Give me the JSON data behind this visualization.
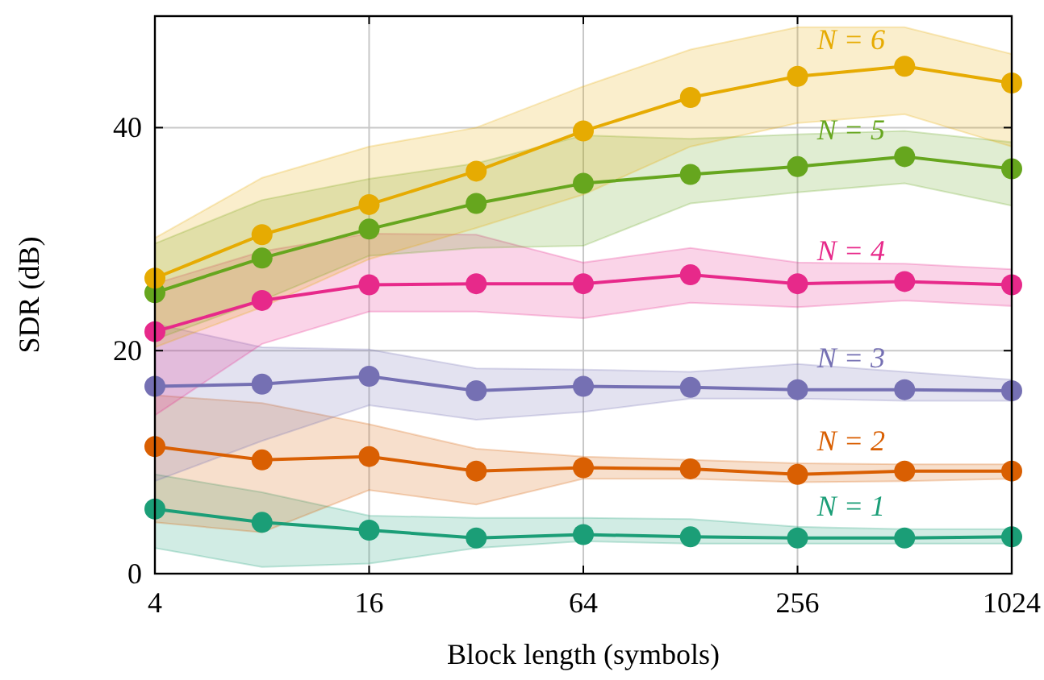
{
  "chart_data": {
    "type": "line",
    "xlabel": "Block length (symbols)",
    "ylabel": "SDR (dB)",
    "x": [
      4,
      8,
      16,
      32,
      64,
      128,
      256,
      512,
      1024
    ],
    "xlim": [
      4,
      1024
    ],
    "xticks": [
      4,
      16,
      64,
      256,
      1024
    ],
    "ylim": [
      0,
      50
    ],
    "yticks": [
      0,
      20,
      40
    ],
    "log": "x",
    "grid": true,
    "marker": "circle",
    "line_style": "solid",
    "series": [
      {
        "name": "N = 1",
        "color": "#1b9e77",
        "values": [
          5.8,
          4.6,
          3.9,
          3.2,
          3.5,
          3.3,
          3.2,
          3.2,
          3.3
        ],
        "upper": [
          8.9,
          7.3,
          5.2,
          5.0,
          5.0,
          4.9,
          4.2,
          4.0,
          4.0
        ],
        "lower": [
          2.3,
          0.6,
          0.9,
          2.3,
          2.9,
          2.7,
          2.7,
          2.7,
          2.7
        ]
      },
      {
        "name": "N = 2",
        "color": "#d95f02",
        "values": [
          11.4,
          10.2,
          10.5,
          9.2,
          9.5,
          9.4,
          8.9,
          9.2,
          9.2
        ],
        "upper": [
          16.0,
          15.3,
          13.4,
          11.2,
          10.5,
          10.2,
          9.9,
          9.8,
          9.8
        ],
        "lower": [
          4.6,
          3.7,
          7.5,
          6.2,
          8.5,
          8.5,
          8.2,
          8.3,
          8.5
        ]
      },
      {
        "name": "N = 3",
        "color": "#7570b3",
        "values": [
          16.8,
          17.0,
          17.7,
          16.4,
          16.8,
          16.7,
          16.5,
          16.5,
          16.4
        ],
        "upper": [
          22.4,
          20.3,
          20.1,
          18.4,
          18.3,
          18.1,
          18.8,
          18.1,
          17.4
        ],
        "lower": [
          8.3,
          11.9,
          15.1,
          13.8,
          14.5,
          15.7,
          15.7,
          15.5,
          15.5
        ]
      },
      {
        "name": "N = 4",
        "color": "#e7298a",
        "values": [
          21.7,
          24.5,
          25.9,
          26.0,
          26.0,
          26.8,
          26.0,
          26.2,
          25.9
        ],
        "upper": [
          26.0,
          28.9,
          30.5,
          30.4,
          27.9,
          29.2,
          27.9,
          27.8,
          27.3
        ],
        "lower": [
          14.2,
          20.6,
          23.5,
          23.5,
          22.9,
          24.3,
          23.9,
          24.5,
          24.0
        ]
      },
      {
        "name": "N = 5",
        "color": "#66a61e",
        "values": [
          25.2,
          28.3,
          30.9,
          33.2,
          35.0,
          35.8,
          36.5,
          37.4,
          36.3
        ],
        "upper": [
          29.6,
          33.5,
          35.4,
          36.8,
          39.3,
          39.0,
          39.4,
          39.7,
          38.7
        ],
        "lower": [
          21.0,
          24.5,
          28.5,
          29.2,
          29.4,
          33.2,
          34.2,
          35.0,
          33.0
        ]
      },
      {
        "name": "N = 6",
        "color": "#e6ab02",
        "values": [
          26.5,
          30.4,
          33.1,
          36.1,
          39.7,
          42.7,
          44.6,
          45.5,
          44.0
        ],
        "upper": [
          30.1,
          35.5,
          38.3,
          40.0,
          43.7,
          47.0,
          49.0,
          49.0,
          46.6
        ],
        "lower": [
          20.3,
          23.9,
          28.2,
          31.0,
          34.0,
          38.3,
          40.4,
          41.2,
          38.3
        ]
      }
    ]
  }
}
